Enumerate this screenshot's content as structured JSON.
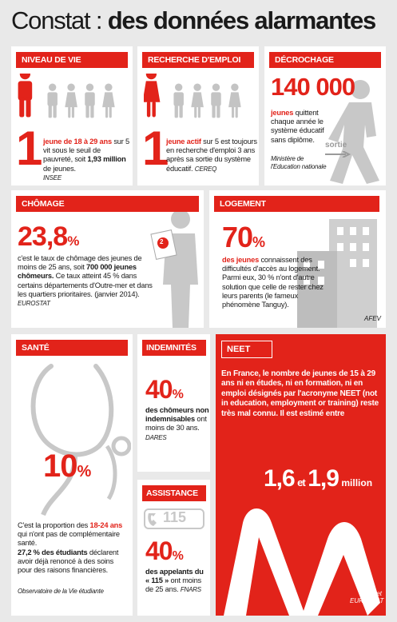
{
  "title": {
    "light": "Constat :",
    "bold": "des données alarmantes"
  },
  "niveau_de_vie": {
    "header": "NIVEAU DE VIE",
    "number": "1",
    "text": [
      "jeune de 18 à 29 ans",
      "sur 5 vit sous le seuil de pauvreté, soit",
      "1,93 million",
      "de jeunes."
    ],
    "source": "INSEE"
  },
  "recherche_emploi": {
    "header": "RECHERCHE D'EMPLOI",
    "number": "1",
    "text": [
      "jeune actif",
      "sur 5 est toujours en recherche d'emploi 3 ans après sa sortie du système éducatif."
    ],
    "source": "CEREQ"
  },
  "decrochage": {
    "header": "DÉCROCHAGE",
    "number": "140 000",
    "text": [
      "jeunes",
      "quittent chaque année le système éducatif sans diplôme."
    ],
    "source": "Ministère de l'Education nationale",
    "sign": "sortie"
  },
  "chomage": {
    "header": "CHÔMAGE",
    "number": "23,8",
    "unit": "%",
    "badge": "2",
    "text": [
      "c'est le taux de chômage des jeunes de moins de 25 ans, soit",
      "700 000 jeunes chômeurs.",
      "Ce taux atteint 45 % dans certains départements d'Outre-mer et dans les quartiers prioritaires.",
      "(janvier 2014)."
    ],
    "source": "EUROSTAT"
  },
  "logement": {
    "header": "LOGEMENT",
    "number": "70",
    "unit": "%",
    "text": [
      "des jeunes",
      "connaissent des difficultés d'accès au logement. Parmi eux, 30 % n'ont d'autre solution que celle de rester chez leurs parents (le fameux phénomène Tanguy)."
    ],
    "source": "AFEV"
  },
  "sante": {
    "header": "SANTÉ",
    "number": "10",
    "unit": "%",
    "text": [
      "C'est la proportion des",
      "18-24 ans",
      "qui n'ont pas de complémentaire santé.",
      "27,2 % des étudiants",
      "déclarent avoir déjà renoncé à des soins pour des raisons financières."
    ],
    "source": "Observatoire de la Vie étudiante"
  },
  "indemnites": {
    "header": "INDEMNITÉS",
    "number": "40",
    "unit": "%",
    "text": [
      "des chômeurs non indemnisables",
      "ont moins de 30 ans."
    ],
    "source": "DARES"
  },
  "assistance": {
    "header": "ASSISTANCE",
    "phone": "115",
    "number": "40",
    "unit": "%",
    "text": [
      "des appelants du « 115 »",
      "ont moins de 25 ans."
    ],
    "source": "FNARS"
  },
  "neet": {
    "header": "NEET",
    "text": "En France, le nombre de jeunes de 15 à 29 ans ni en études, ni en formation, ni en emploi désignés par l'acronyme NEET (not in education, employment or training) reste très mal connu. Il est estimé entre",
    "low": "1,6",
    "and": "et",
    "high": "1,9",
    "unit": "million",
    "source": "CAE et EUROSTAT"
  }
}
